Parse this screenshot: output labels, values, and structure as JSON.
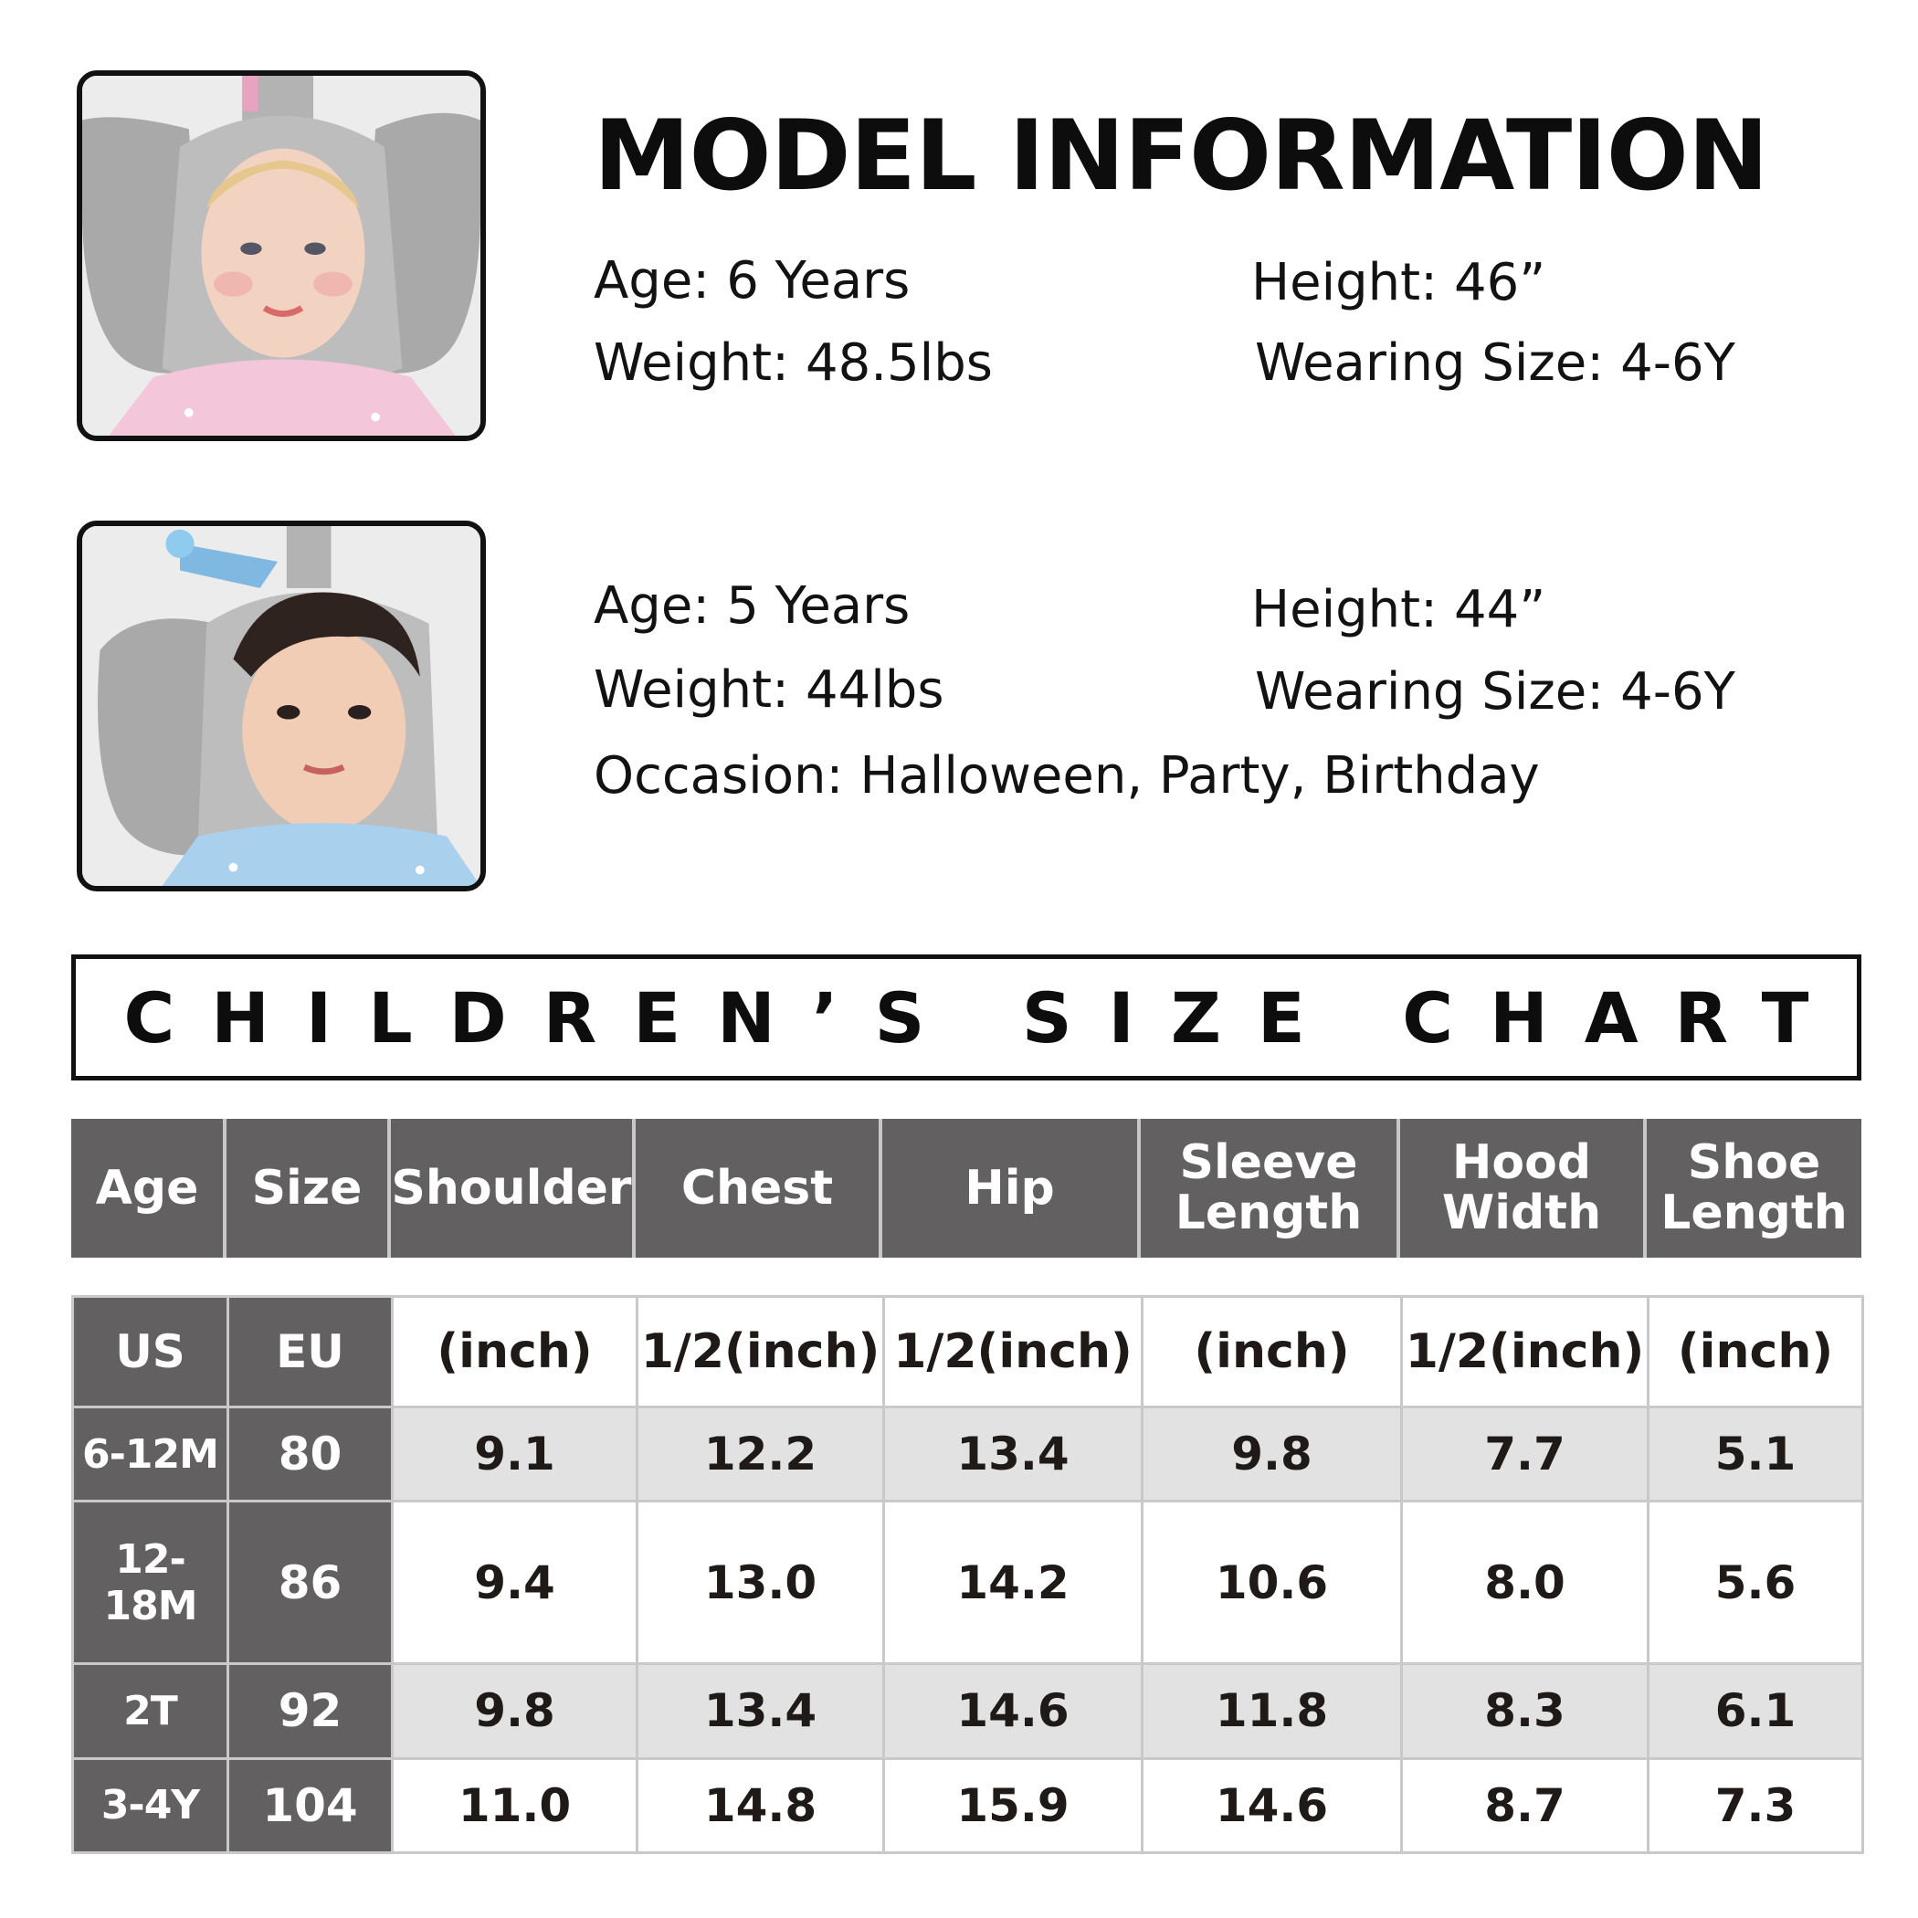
{
  "model_section": {
    "title": "MODEL INFORMATION",
    "model1": {
      "age_label": "Age:",
      "age_value": "6 Years",
      "height_label": "Height:",
      "height_value": "46”",
      "weight_label": "Weight:",
      "weight_value": "48.5lbs",
      "size_label": "Wearing Size:",
      "size_value": "4-6Y"
    },
    "model2": {
      "age_label": "Age:",
      "age_value": "5 Years",
      "height_label": "Height:",
      "height_value": "44”",
      "weight_label": "Weight:",
      "weight_value": "44lbs",
      "size_label": "Wearing Size:",
      "size_value": "4-6Y",
      "occasion_label": "Occasion:",
      "occasion_value": "Halloween, Party, Birthday"
    }
  },
  "size_chart": {
    "title": "CHILDREN’S SIZE CHART",
    "headers": [
      "Age",
      "Size",
      "Shoulder",
      "Chest",
      "Hip",
      "Sleeve\nLength",
      "Hood\nWidth",
      "Shoe\nLength"
    ],
    "units": [
      "US",
      "EU",
      "(inch)",
      "1/2(inch)",
      "1/2(inch)",
      "(inch)",
      "1/2(inch)",
      "(inch)"
    ],
    "rows": [
      [
        "6-12M",
        "80",
        "9.1",
        "12.2",
        "13.4",
        "9.8",
        "7.7",
        "5.1"
      ],
      [
        "12-18M",
        "86",
        "9.4",
        "13.0",
        "14.2",
        "10.6",
        "8.0",
        "5.6"
      ],
      [
        "2T",
        "92",
        "9.8",
        "13.4",
        "14.6",
        "11.8",
        "8.3",
        "6.1"
      ],
      [
        "3-4Y",
        "104",
        "11.0",
        "14.8",
        "15.9",
        "14.6",
        "8.7",
        "7.3"
      ]
    ]
  },
  "colors": {
    "header_gray": "#626061",
    "row_shade": "#e2e2e2",
    "text_dark": "#1f1a17"
  }
}
